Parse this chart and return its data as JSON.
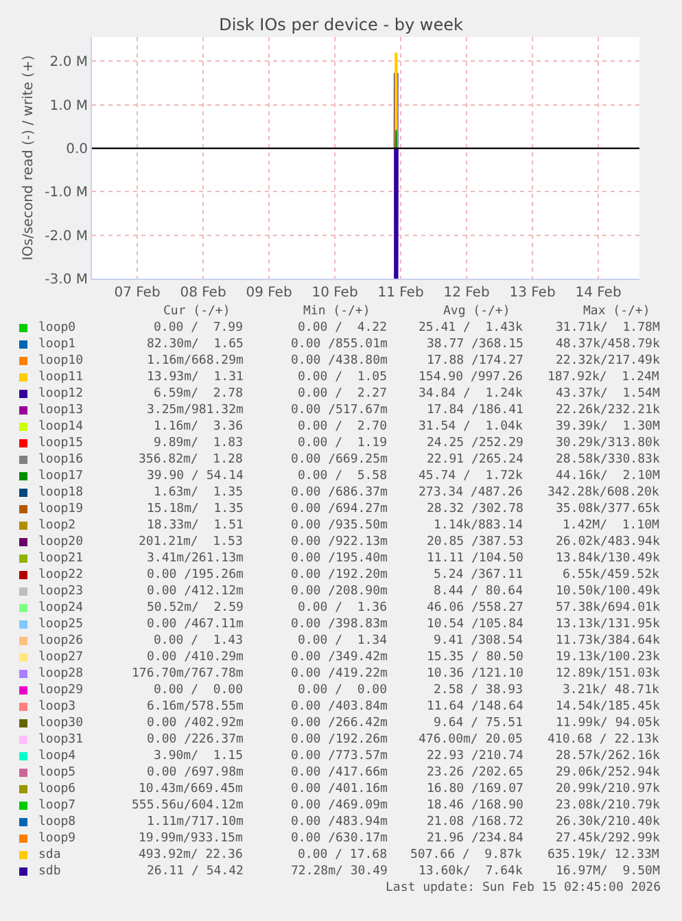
{
  "chart_data": {
    "type": "line",
    "title": "Disk IOs per device - by week",
    "ylabel": "IOs/second read (-) / write (+)",
    "xlim": [
      "2026-02-06T19:30",
      "2026-02-15T03:00"
    ],
    "xticks": [
      {
        "value": "2026-02-07T12:00",
        "label": "07 Feb"
      },
      {
        "value": "2026-02-08T12:00",
        "label": "08 Feb"
      },
      {
        "value": "2026-02-09T12:00",
        "label": "09 Feb"
      },
      {
        "value": "2026-02-10T12:00",
        "label": "10 Feb"
      },
      {
        "value": "2026-02-11T12:00",
        "label": "11 Feb"
      },
      {
        "value": "2026-02-12T12:00",
        "label": "12 Feb"
      },
      {
        "value": "2026-02-13T12:00",
        "label": "13 Feb"
      },
      {
        "value": "2026-02-14T12:00",
        "label": "14 Feb"
      }
    ],
    "ylim": [
      -3000000,
      2560000
    ],
    "yticks": [
      {
        "value": -3000000,
        "label": "-3.0 M"
      },
      {
        "value": -2000000,
        "label": "-2.0 M"
      },
      {
        "value": -1000000,
        "label": "-1.0 M"
      },
      {
        "value": 0,
        "label": "0.0"
      },
      {
        "value": 1000000,
        "label": "1.0 M"
      },
      {
        "value": 2000000,
        "label": "2.0 M"
      }
    ],
    "grid": true,
    "legend": "bottom",
    "marker": "none",
    "line_style": "solid",
    "ref_lines": [
      {
        "axis": "y",
        "value": 0,
        "color": "#000000"
      }
    ],
    "series": [
      {
        "name": "loop0",
        "color": "#00cc00",
        "values": [
          null,
          null,
          null,
          null,
          null
        ]
      },
      {
        "name": "loop1",
        "color": "#0066b3",
        "values": [
          null,
          null,
          null,
          null,
          null
        ]
      },
      {
        "name": "loop10",
        "color": "#ff8000",
        "values": [
          null,
          null,
          null,
          null,
          null
        ]
      },
      {
        "name": "loop11",
        "color": "#ffcc00",
        "values": [
          null,
          null,
          null,
          null,
          null
        ]
      },
      {
        "name": "loop12",
        "color": "#330099",
        "values": [
          null,
          null,
          null,
          null,
          null
        ]
      },
      {
        "name": "loop13",
        "color": "#990099",
        "values": [
          null,
          null,
          null,
          null,
          null
        ]
      },
      {
        "name": "loop14",
        "color": "#ccff00",
        "values": [
          null,
          null,
          null,
          null,
          null
        ]
      },
      {
        "name": "loop15",
        "color": "#ff0000",
        "values": [
          null,
          null,
          null,
          null,
          null
        ]
      },
      {
        "name": "loop16",
        "color": "#808080",
        "values": [
          null,
          null,
          null,
          null,
          null
        ]
      },
      {
        "name": "loop17",
        "color": "#008f00",
        "x": [
          "2026-02-11T10:15",
          "2026-02-11T10:20",
          "2026-02-11T10:25"
        ],
        "values": [
          0,
          420000,
          0
        ]
      },
      {
        "name": "loop18",
        "color": "#00487d",
        "values": [
          null,
          null,
          null,
          null,
          null
        ]
      },
      {
        "name": "loop19",
        "color": "#b35a00",
        "values": [
          null,
          null,
          null,
          null,
          null
        ]
      },
      {
        "name": "loop2",
        "color": "#b38f00",
        "values": [
          null,
          null,
          null,
          null,
          null
        ]
      },
      {
        "name": "loop20",
        "color": "#6b006b",
        "values": [
          null,
          null,
          null,
          null,
          null
        ]
      },
      {
        "name": "loop21",
        "color": "#8fb300",
        "values": [
          null,
          null,
          null,
          null,
          null
        ]
      },
      {
        "name": "loop22",
        "color": "#b30000",
        "values": [
          null,
          null,
          null,
          null,
          null
        ]
      },
      {
        "name": "loop23",
        "color": "#bebebe",
        "values": [
          null,
          null,
          null,
          null,
          null
        ]
      },
      {
        "name": "loop24",
        "color": "#80ff80",
        "values": [
          null,
          null,
          null,
          null,
          null
        ]
      },
      {
        "name": "loop25",
        "color": "#80c9ff",
        "values": [
          null,
          null,
          null,
          null,
          null
        ]
      },
      {
        "name": "loop26",
        "color": "#ffc080",
        "values": [
          null,
          null,
          null,
          null,
          null
        ]
      },
      {
        "name": "loop27",
        "color": "#ffe680",
        "values": [
          null,
          null,
          null,
          null,
          null
        ]
      },
      {
        "name": "loop28",
        "color": "#aa80ff",
        "values": [
          null,
          null,
          null,
          null,
          null
        ]
      },
      {
        "name": "loop29",
        "color": "#ee00cc",
        "values": [
          null,
          null,
          null,
          null,
          null
        ]
      },
      {
        "name": "loop3",
        "color": "#ff8080",
        "values": [
          null,
          null,
          null,
          null,
          null
        ]
      },
      {
        "name": "loop30",
        "color": "#666600",
        "values": [
          null,
          null,
          null,
          null,
          null
        ]
      },
      {
        "name": "loop31",
        "color": "#ffbfff",
        "values": [
          null,
          null,
          null,
          null,
          null
        ]
      },
      {
        "name": "loop4",
        "color": "#00ffcc",
        "values": [
          null,
          null,
          null,
          null,
          null
        ]
      },
      {
        "name": "loop5",
        "color": "#cc6699",
        "values": [
          null,
          null,
          null,
          null,
          null
        ]
      },
      {
        "name": "loop6",
        "color": "#999900",
        "values": [
          null,
          null,
          null,
          null,
          null
        ]
      },
      {
        "name": "loop7",
        "color": "#00cc00",
        "values": [
          null,
          null,
          null,
          null,
          null
        ]
      },
      {
        "name": "loop8",
        "color": "#0066b3",
        "values": [
          null,
          null,
          null,
          null,
          null
        ]
      },
      {
        "name": "loop9",
        "color": "#ff8000",
        "values": [
          null,
          null,
          null,
          null,
          null
        ]
      },
      {
        "name": "sda",
        "color": "#ffcc00",
        "x": [
          "2026-02-11T10:15",
          "2026-02-11T10:20",
          "2026-02-11T10:25"
        ],
        "values": [
          0,
          2200000,
          0
        ]
      },
      {
        "name": "sdb",
        "color": "#330099",
        "x": [
          "2026-02-11T10:15",
          "2026-02-11T10:20",
          "2026-02-11T10:20",
          "2026-02-11T10:25"
        ],
        "values": [
          0,
          1730000,
          -3000000,
          0
        ]
      }
    ],
    "annotations": [
      "Cur (-/+)",
      "Min (-/+)",
      "Avg (-/+)",
      "Max (-/+)",
      "0.00 /  7.99",
      "0.00 /  4.22",
      "25.41 /  1.43k",
      "31.71k/  1.78M",
      "82.30m/  1.65",
      "0.00 /855.01m",
      "38.77 /368.15",
      "48.37k/458.79k",
      "1.16m/668.29m",
      "0.00 /438.80m",
      "17.88 /174.27",
      "22.32k/217.49k",
      "13.93m/  1.31",
      "0.00 /  1.05",
      "154.90 /997.26",
      "187.92k/  1.24M",
      "6.59m/  2.78",
      "0.00 /  2.27",
      "34.84 /  1.24k",
      "43.37k/  1.54M",
      "3.25m/981.32m",
      "0.00 /517.67m",
      "17.84 /186.41",
      "22.26k/232.21k",
      "1.16m/  3.36",
      "0.00 /  2.70",
      "31.54 /  1.04k",
      "39.39k/  1.30M",
      "9.89m/  1.83",
      "0.00 /  1.19",
      "24.25 /252.29",
      "30.29k/313.80k",
      "356.82m/  1.28",
      "0.00 /669.25m",
      "22.91 /265.24",
      "28.58k/330.83k",
      "39.90 / 54.14",
      "0.00 /  5.58",
      "45.74 /  1.72k",
      "44.16k/  2.10M",
      "1.63m/  1.35",
      "0.00 /686.37m",
      "273.34 /487.26",
      "342.28k/608.20k",
      "15.18m/  1.35",
      "0.00 /694.27m",
      "28.32 /302.78",
      "35.08k/377.65k",
      "18.33m/  1.51",
      "0.00 /935.50m",
      "1.14k/883.14",
      "1.42M/  1.10M",
      "201.21m/  1.53",
      "0.00 /922.13m",
      "20.85 /387.53",
      "26.02k/483.94k",
      "3.41m/261.13m",
      "0.00 /195.40m",
      "11.11 /104.50",
      "13.84k/130.49k",
      "0.00 /195.26m",
      "0.00 /192.20m",
      "5.24 /367.11",
      "6.55k/459.52k",
      "0.00 /412.12m",
      "0.00 /208.90m",
      "8.44 / 80.64",
      "10.50k/100.49k",
      "50.52m/  2.59",
      "0.00 /  1.36",
      "46.06 /558.27",
      "57.38k/694.01k",
      "0.00 /467.11m",
      "0.00 /398.83m",
      "10.54 /105.84",
      "13.13k/131.95k",
      "0.00 /  1.43",
      "0.00 /  1.34",
      "9.41 /308.54",
      "11.73k/384.64k",
      "0.00 /410.29m",
      "0.00 /349.42m",
      "15.35 / 80.50",
      "19.13k/100.23k",
      "176.70m/767.78m",
      "0.00 /419.22m",
      "10.36 /121.10",
      "12.89k/151.03k",
      "0.00 /  0.00",
      "0.00 /  0.00",
      "2.58 / 38.93",
      "3.21k/ 48.71k",
      "6.16m/578.55m",
      "0.00 /403.84m",
      "11.64 /148.64",
      "14.54k/185.45k",
      "0.00 /402.92m",
      "0.00 /266.42m",
      "9.64 / 75.51",
      "11.99k/ 94.05k",
      "0.00 /226.37m",
      "0.00 /192.26m",
      "476.00m/ 20.05",
      "410.68 / 22.13k",
      "3.90m/  1.15",
      "0.00 /773.57m",
      "22.93 /210.74",
      "28.57k/262.16k",
      "0.00 /697.98m",
      "0.00 /417.66m",
      "23.26 /202.65",
      "29.06k/252.94k",
      "10.43m/669.45m",
      "0.00 /401.16m",
      "16.80 /169.07",
      "20.99k/210.97k",
      "555.56u/604.12m",
      "0.00 /469.09m",
      "18.46 /168.90",
      "23.08k/210.79k",
      "1.11m/717.10m",
      "0.00 /483.94m",
      "21.08 /168.72",
      "26.30k/210.40k",
      "19.99m/933.15m",
      "0.00 /630.17m",
      "21.96 /234.84",
      "27.45k/292.99k",
      "493.92m/ 22.36",
      "0.00 / 17.68",
      "507.66 /  9.87k",
      "635.19k/ 12.33M",
      "26.11 / 54.42",
      "72.28m/ 30.49",
      "13.60k/  7.64k",
      "16.97M/  9.50M",
      "Last update: Sun Feb 15 02:45:00 2026"
    ]
  }
}
